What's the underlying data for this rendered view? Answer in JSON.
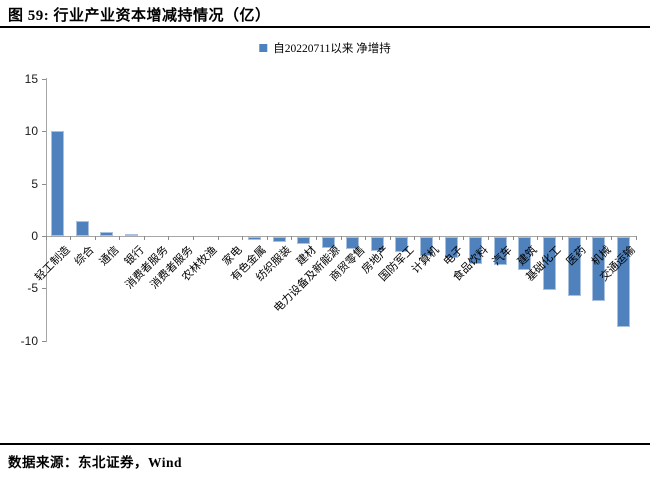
{
  "figure": {
    "title": "图 59: 行业产业资本增减持情况（亿）",
    "source": "数据来源：东北证券，Wind"
  },
  "chart_data": {
    "type": "bar",
    "title": "图 59: 行业产业资本增减持情况（亿）",
    "legend": [
      "自20220711以来 净增持"
    ],
    "legend_position": "top-center",
    "grid": false,
    "bar_color": "#4f81bd",
    "axis_color": "#a6a6a6",
    "ylim": [
      -10,
      15
    ],
    "yticks": [
      15,
      10,
      5,
      0,
      -5,
      -10
    ],
    "xlabel": "",
    "ylabel": "",
    "categories": [
      "轻工制造",
      "综合",
      "通信",
      "银行",
      "消费者服务",
      "消费者服务",
      "农林牧渔",
      "家电",
      "有色金属",
      "纺织服装",
      "建材",
      "电力设备及新能源",
      "商贸零售",
      "房地产",
      "国防军工",
      "计算机",
      "电子",
      "食品饮料",
      "汽车",
      "建筑",
      "基础化工",
      "医药",
      "机械",
      "交通运输"
    ],
    "values": [
      10.0,
      1.4,
      0.4,
      0.2,
      0.0,
      0.0,
      0.0,
      0.0,
      -0.3,
      -0.5,
      -0.7,
      -1.1,
      -1.2,
      -1.4,
      -1.5,
      -1.9,
      -2.1,
      -2.6,
      -2.7,
      -3.2,
      -5.1,
      -5.7,
      -6.2,
      -8.6
    ]
  }
}
